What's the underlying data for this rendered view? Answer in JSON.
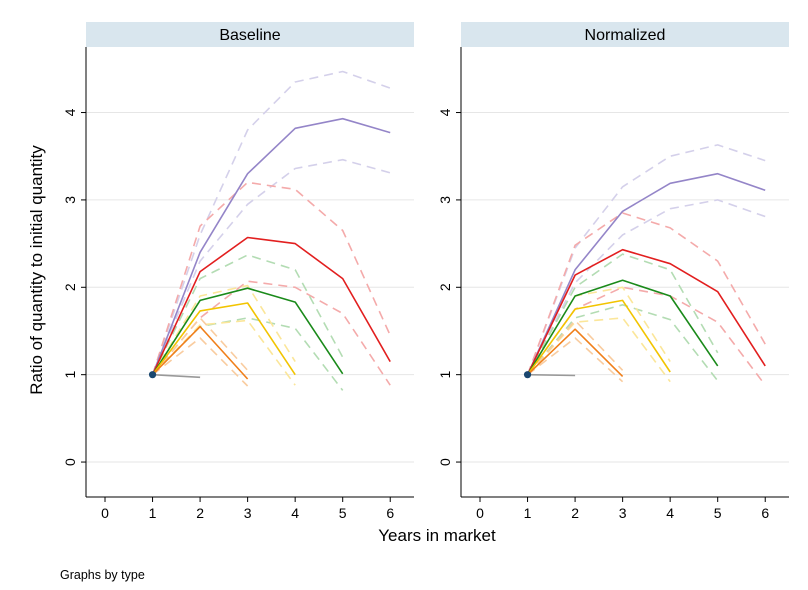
{
  "chart_data": {
    "type": "line",
    "xlabel": "Years in market",
    "ylabel": "Ratio of quantity to initial quantity",
    "note": "Graphs by type",
    "xlim": [
      -0.4,
      6.5
    ],
    "ylim": [
      -0.4,
      4.75
    ],
    "xticks": [
      0,
      1,
      2,
      3,
      4,
      5,
      6
    ],
    "yticks": [
      0,
      1,
      2,
      3,
      4
    ],
    "grid": "horizontal",
    "colors": {
      "strip": "#d9e6ee",
      "grid": "#e6e6e6",
      "marker": "#1a476f"
    },
    "panels": [
      {
        "title": "Baseline",
        "series": [
          {
            "color": "#9485c8",
            "dashed": false,
            "x": [
              1,
              2,
              3,
              4,
              5,
              6
            ],
            "y": [
              1,
              2.4,
              3.3,
              3.82,
              3.93,
              3.77
            ]
          },
          {
            "color": "#e21f1f",
            "dashed": false,
            "x": [
              1,
              2,
              3,
              4,
              5,
              6
            ],
            "y": [
              1,
              2.18,
              2.57,
              2.5,
              2.1,
              1.15
            ]
          },
          {
            "color": "#1a8a1a",
            "dashed": false,
            "x": [
              1,
              2,
              3,
              4,
              5
            ],
            "y": [
              1,
              1.85,
              1.99,
              1.83,
              1.01
            ]
          },
          {
            "color": "#f2c400",
            "dashed": false,
            "x": [
              1,
              2,
              3,
              4
            ],
            "y": [
              1,
              1.73,
              1.82,
              1.0
            ]
          },
          {
            "color": "#f07f1a",
            "dashed": false,
            "x": [
              1,
              2,
              3
            ],
            "y": [
              1,
              1.55,
              0.95
            ]
          },
          {
            "color": "#999999",
            "dashed": false,
            "x": [
              1,
              2
            ],
            "y": [
              1,
              0.97
            ]
          },
          {
            "color": "#d4d0ea",
            "dashed": true,
            "x": [
              1,
              2,
              3,
              4,
              5,
              6
            ],
            "y": [
              1,
              2.6,
              3.8,
              4.35,
              4.47,
              4.28
            ]
          },
          {
            "color": "#d4d0ea",
            "dashed": true,
            "x": [
              1,
              2,
              3,
              4,
              5,
              6
            ],
            "y": [
              1,
              2.3,
              2.95,
              3.36,
              3.46,
              3.31
            ]
          },
          {
            "color": "#f4aaaa",
            "dashed": true,
            "x": [
              1,
              2,
              3,
              4,
              5,
              6
            ],
            "y": [
              1,
              2.7,
              3.2,
              3.12,
              2.65,
              1.45
            ]
          },
          {
            "color": "#f4aaaa",
            "dashed": true,
            "x": [
              1,
              2,
              3,
              4,
              5,
              6
            ],
            "y": [
              1,
              1.65,
              2.07,
              2.0,
              1.7,
              0.88
            ]
          },
          {
            "color": "#b3dcb3",
            "dashed": true,
            "x": [
              1,
              2,
              3,
              4,
              5
            ],
            "y": [
              1,
              2.1,
              2.37,
              2.2,
              1.2
            ]
          },
          {
            "color": "#b3dcb3",
            "dashed": true,
            "x": [
              1,
              2,
              3,
              4,
              5
            ],
            "y": [
              1,
              1.55,
              1.65,
              1.53,
              0.82
            ]
          },
          {
            "color": "#fbe699",
            "dashed": true,
            "x": [
              1,
              2,
              3,
              4
            ],
            "y": [
              1,
              1.9,
              2.02,
              1.15
            ]
          },
          {
            "color": "#fbe699",
            "dashed": true,
            "x": [
              1,
              2,
              3,
              4
            ],
            "y": [
              1,
              1.57,
              1.62,
              0.88
            ]
          },
          {
            "color": "#f9cc9f",
            "dashed": true,
            "x": [
              1,
              2,
              3
            ],
            "y": [
              1,
              1.65,
              1.05
            ]
          },
          {
            "color": "#f9cc9f",
            "dashed": true,
            "x": [
              1,
              2,
              3
            ],
            "y": [
              1,
              1.42,
              0.87
            ]
          }
        ]
      },
      {
        "title": "Normalized",
        "series": [
          {
            "color": "#9485c8",
            "dashed": false,
            "x": [
              1,
              2,
              3,
              4,
              5,
              6
            ],
            "y": [
              1,
              2.2,
              2.87,
              3.19,
              3.3,
              3.11
            ]
          },
          {
            "color": "#e21f1f",
            "dashed": false,
            "x": [
              1,
              2,
              3,
              4,
              5,
              6
            ],
            "y": [
              1,
              2.14,
              2.43,
              2.27,
              1.95,
              1.1
            ]
          },
          {
            "color": "#1a8a1a",
            "dashed": false,
            "x": [
              1,
              2,
              3,
              4,
              5
            ],
            "y": [
              1,
              1.9,
              2.08,
              1.9,
              1.1
            ]
          },
          {
            "color": "#f2c400",
            "dashed": false,
            "x": [
              1,
              2,
              3,
              4
            ],
            "y": [
              1,
              1.75,
              1.85,
              1.03
            ]
          },
          {
            "color": "#f07f1a",
            "dashed": false,
            "x": [
              1,
              2,
              3
            ],
            "y": [
              1,
              1.52,
              0.98
            ]
          },
          {
            "color": "#999999",
            "dashed": false,
            "x": [
              1,
              2
            ],
            "y": [
              1,
              0.99
            ]
          },
          {
            "color": "#d4d0ea",
            "dashed": true,
            "x": [
              1,
              2,
              3,
              4,
              5,
              6
            ],
            "y": [
              1,
              2.45,
              3.15,
              3.5,
              3.63,
              3.45
            ]
          },
          {
            "color": "#d4d0ea",
            "dashed": true,
            "x": [
              1,
              2,
              3,
              4,
              5,
              6
            ],
            "y": [
              1,
              2.05,
              2.6,
              2.9,
              3.0,
              2.81
            ]
          },
          {
            "color": "#f4aaaa",
            "dashed": true,
            "x": [
              1,
              2,
              3,
              4,
              5,
              6
            ],
            "y": [
              1,
              2.48,
              2.85,
              2.68,
              2.3,
              1.35
            ]
          },
          {
            "color": "#f4aaaa",
            "dashed": true,
            "x": [
              1,
              2,
              3,
              4,
              5,
              6
            ],
            "y": [
              1,
              1.75,
              2.0,
              1.9,
              1.6,
              0.88
            ]
          },
          {
            "color": "#b3dcb3",
            "dashed": true,
            "x": [
              1,
              2,
              3,
              4,
              5
            ],
            "y": [
              1,
              2.0,
              2.38,
              2.2,
              1.25
            ]
          },
          {
            "color": "#b3dcb3",
            "dashed": true,
            "x": [
              1,
              2,
              3,
              4,
              5
            ],
            "y": [
              1,
              1.65,
              1.8,
              1.63,
              0.93
            ]
          },
          {
            "color": "#fbe699",
            "dashed": true,
            "x": [
              1,
              2,
              3,
              4
            ],
            "y": [
              1,
              1.9,
              2.0,
              1.15
            ]
          },
          {
            "color": "#fbe699",
            "dashed": true,
            "x": [
              1,
              2,
              3,
              4
            ],
            "y": [
              1,
              1.6,
              1.65,
              0.92
            ]
          },
          {
            "color": "#f9cc9f",
            "dashed": true,
            "x": [
              1,
              2,
              3
            ],
            "y": [
              1,
              1.62,
              1.05
            ]
          },
          {
            "color": "#f9cc9f",
            "dashed": true,
            "x": [
              1,
              2,
              3
            ],
            "y": [
              1,
              1.42,
              0.92
            ]
          }
        ]
      }
    ]
  }
}
